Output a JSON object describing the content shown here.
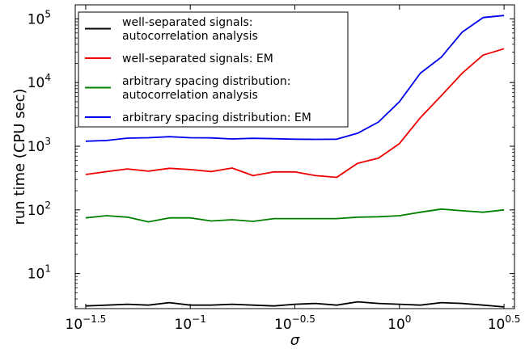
{
  "chart_data": {
    "type": "line",
    "xlabel": "σ",
    "ylabel": "run time (CPU sec)",
    "title": "",
    "xscale": "log10",
    "yscale": "log10",
    "xlim": [
      -1.55,
      0.55
    ],
    "ylim": [
      0.45,
      5.22
    ],
    "grid": false,
    "legend_position": "upper-left",
    "x_ticks": [
      {
        "value": -1.5,
        "base": "10",
        "exp": "−1.5"
      },
      {
        "value": -1.0,
        "base": "10",
        "exp": "−1"
      },
      {
        "value": -0.5,
        "base": "10",
        "exp": "−0.5"
      },
      {
        "value": 0.0,
        "base": "10",
        "exp": "0"
      },
      {
        "value": 0.5,
        "base": "10",
        "exp": "0.5"
      }
    ],
    "y_ticks": [
      {
        "value": 1,
        "base": "10",
        "exp": "1"
      },
      {
        "value": 2,
        "base": "10",
        "exp": "2"
      },
      {
        "value": 3,
        "base": "10",
        "exp": "3"
      },
      {
        "value": 4,
        "base": "10",
        "exp": "4"
      },
      {
        "value": 5,
        "base": "10",
        "exp": "5"
      }
    ],
    "x": [
      -1.5,
      -1.4,
      -1.3,
      -1.2,
      -1.1,
      -1.0,
      -0.9,
      -0.8,
      -0.7,
      -0.6,
      -0.5,
      -0.4,
      -0.3,
      -0.2,
      -0.1,
      0.0,
      0.1,
      0.2,
      0.3,
      0.4,
      0.5
    ],
    "series": [
      {
        "name": "well-separated signals:\nautocorrelation analysis",
        "color": "#000000",
        "values": [
          3.1,
          3.2,
          3.3,
          3.2,
          3.5,
          3.2,
          3.2,
          3.3,
          3.2,
          3.1,
          3.3,
          3.4,
          3.2,
          3.6,
          3.4,
          3.3,
          3.2,
          3.5,
          3.4,
          3.2,
          3.0
        ]
      },
      {
        "name": "well-separated signals: EM",
        "color": "#ee0000",
        "values": [
          360,
          400,
          440,
          405,
          450,
          430,
          400,
          455,
          345,
          395,
          395,
          345,
          325,
          540,
          650,
          1100,
          2800,
          6200,
          14000,
          27000,
          34000
        ]
      },
      {
        "name": "arbitrary spacing distribution:\nautocorrelation analysis",
        "color": "#008000",
        "values": [
          75,
          81,
          77,
          65,
          75,
          75,
          67,
          70,
          66,
          73,
          73,
          73,
          73,
          77,
          78,
          81,
          92,
          103,
          97,
          92,
          100
        ]
      },
      {
        "name": "arbitrary spacing distribution: EM",
        "color": "#0000ee",
        "values": [
          1200,
          1230,
          1340,
          1360,
          1410,
          1360,
          1350,
          1300,
          1330,
          1310,
          1290,
          1280,
          1290,
          1600,
          2400,
          5000,
          14000,
          25000,
          62000,
          105000,
          113000
        ]
      }
    ]
  }
}
